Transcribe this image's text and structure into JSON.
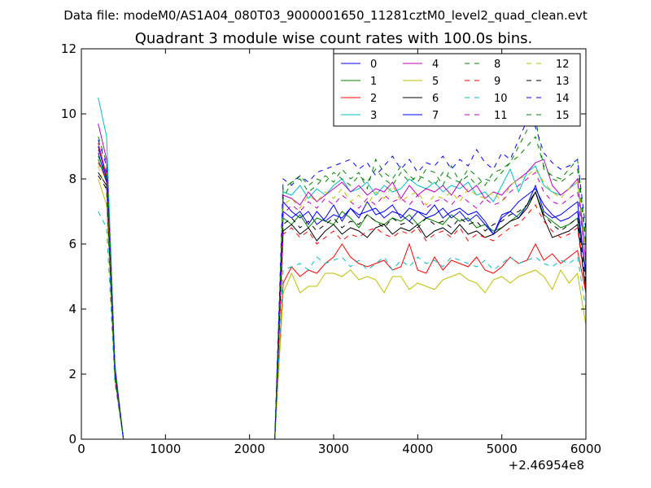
{
  "figure": {
    "suptitle": "Data file: modeM0/AS1A04_080T03_9000001650_11281cztM0_level2_quad_clean.evt"
  },
  "chart_data": {
    "type": "line",
    "title": "Quadrant 3 module wise count rates with 100.0s bins.",
    "xlabel": "",
    "ylabel": "",
    "xlim": [
      0,
      6000
    ],
    "ylim": [
      0,
      12
    ],
    "x_offset_label": "+2.46954e8",
    "x_ticks": [
      0,
      1000,
      2000,
      3000,
      4000,
      5000,
      6000
    ],
    "y_ticks": [
      0,
      2,
      4,
      6,
      8,
      10,
      12
    ],
    "grid": false,
    "legend_position": "top-right",
    "x": [
      200,
      300,
      400,
      500,
      600,
      700,
      800,
      900,
      1000,
      1100,
      1200,
      1300,
      1400,
      1500,
      1600,
      1700,
      1800,
      1900,
      2000,
      2100,
      2200,
      2300,
      2400,
      2500,
      2600,
      2700,
      2800,
      2900,
      3000,
      3100,
      3200,
      3300,
      3400,
      3500,
      3600,
      3700,
      3800,
      3900,
      4000,
      4100,
      4200,
      4300,
      4400,
      4500,
      4600,
      4700,
      4800,
      4900,
      5000,
      5100,
      5200,
      5300,
      5400,
      5500,
      5600,
      5700,
      5800,
      5900,
      6000
    ],
    "series": [
      {
        "name": "0",
        "color": "#0000ff",
        "dash": "solid",
        "values": [
          9.0,
          8.0,
          2.0,
          0,
          0,
          0,
          0,
          0,
          0,
          0,
          0,
          0,
          0,
          0,
          0,
          0,
          0,
          0,
          0,
          0,
          0,
          0,
          7.3,
          7.0,
          6.8,
          7.0,
          6.6,
          6.8,
          7.2,
          6.7,
          7.1,
          6.8,
          7.3,
          6.9,
          7.0,
          7.2,
          6.8,
          7.1,
          7.0,
          6.9,
          7.2,
          6.8,
          7.0,
          7.1,
          6.9,
          7.0,
          6.7,
          6.3,
          6.9,
          7.0,
          6.8,
          7.2,
          7.8,
          7.0,
          6.8,
          6.9,
          7.1,
          7.3,
          5.0
        ]
      },
      {
        "name": "1",
        "color": "#008000",
        "dash": "solid",
        "values": [
          8.6,
          7.9,
          2.1,
          0,
          0,
          0,
          0,
          0,
          0,
          0,
          0,
          0,
          0,
          0,
          0,
          0,
          0,
          0,
          0,
          0,
          0,
          0,
          6.8,
          6.6,
          6.9,
          6.5,
          6.8,
          6.7,
          6.6,
          7.0,
          6.8,
          6.5,
          6.9,
          6.7,
          6.6,
          6.8,
          6.7,
          6.9,
          6.6,
          6.8,
          6.7,
          6.6,
          6.9,
          6.7,
          6.8,
          6.5,
          6.6,
          6.4,
          6.5,
          6.7,
          6.9,
          7.2,
          7.6,
          6.9,
          6.7,
          6.5,
          6.6,
          6.8,
          5.2
        ]
      },
      {
        "name": "2",
        "color": "#ff0000",
        "dash": "solid",
        "values": [
          9.1,
          8.1,
          2.0,
          0,
          0,
          0,
          0,
          0,
          0,
          0,
          0,
          0,
          0,
          0,
          0,
          0,
          0,
          0,
          0,
          0,
          0,
          0,
          4.8,
          5.3,
          5.0,
          5.2,
          5.1,
          5.4,
          5.6,
          6.0,
          5.6,
          5.4,
          5.3,
          5.4,
          5.5,
          5.2,
          5.3,
          6.0,
          5.2,
          5.1,
          5.6,
          5.2,
          5.5,
          5.4,
          5.3,
          5.6,
          5.2,
          5.1,
          5.3,
          5.6,
          5.4,
          5.5,
          6.0,
          5.5,
          5.7,
          5.4,
          5.6,
          5.8,
          4.5
        ]
      },
      {
        "name": "3",
        "color": "#00bfbf",
        "dash": "solid",
        "values": [
          10.5,
          9.3,
          2.3,
          0,
          0,
          0,
          0,
          0,
          0,
          0,
          0,
          0,
          0,
          0,
          0,
          0,
          0,
          0,
          0,
          0,
          0,
          0,
          7.6,
          7.5,
          7.8,
          7.4,
          7.7,
          7.5,
          7.8,
          8.0,
          7.6,
          7.7,
          7.9,
          7.5,
          7.8,
          7.6,
          7.7,
          8.0,
          7.8,
          7.7,
          7.9,
          7.6,
          7.8,
          7.7,
          7.9,
          7.5,
          7.6,
          7.3,
          7.8,
          8.3,
          7.6,
          8.2,
          8.4,
          7.8,
          7.6,
          7.5,
          7.7,
          7.9,
          5.9
        ]
      },
      {
        "name": "4",
        "color": "#bf00bf",
        "dash": "solid",
        "values": [
          9.7,
          8.6,
          2.2,
          0,
          0,
          0,
          0,
          0,
          0,
          0,
          0,
          0,
          0,
          0,
          0,
          0,
          0,
          0,
          0,
          0,
          0,
          0,
          7.5,
          7.4,
          7.2,
          7.6,
          7.3,
          7.5,
          7.7,
          7.9,
          7.6,
          7.8,
          7.5,
          7.7,
          7.6,
          7.9,
          7.4,
          7.8,
          7.5,
          7.7,
          7.6,
          7.8,
          7.5,
          7.9,
          7.6,
          7.8,
          7.4,
          7.6,
          7.5,
          7.8,
          8.0,
          8.2,
          8.5,
          8.6,
          7.8,
          7.5,
          7.7,
          8.0,
          5.4
        ]
      },
      {
        "name": "5",
        "color": "#bfbf00",
        "dash": "solid",
        "values": [
          8.0,
          7.2,
          1.8,
          0,
          0,
          0,
          0,
          0,
          0,
          0,
          0,
          0,
          0,
          0,
          0,
          0,
          0,
          0,
          0,
          0,
          0,
          0,
          4.5,
          5.1,
          4.5,
          4.7,
          4.7,
          5.1,
          5.1,
          5.0,
          5.2,
          4.9,
          5.0,
          4.9,
          4.5,
          5.0,
          5.0,
          4.6,
          4.8,
          4.7,
          4.6,
          4.9,
          5.0,
          5.1,
          4.9,
          4.8,
          4.5,
          4.9,
          5.0,
          4.8,
          5.0,
          5.1,
          5.2,
          5.0,
          4.6,
          5.2,
          4.8,
          5.1,
          3.5
        ]
      },
      {
        "name": "6",
        "color": "#000000",
        "dash": "solid",
        "values": [
          8.2,
          7.8,
          2.0,
          0,
          0,
          0,
          0,
          0,
          0,
          0,
          0,
          0,
          0,
          0,
          0,
          0,
          0,
          0,
          0,
          0,
          0,
          0,
          6.4,
          6.6,
          6.3,
          6.5,
          6.1,
          6.4,
          6.6,
          6.3,
          6.5,
          6.4,
          6.2,
          6.5,
          6.6,
          6.3,
          6.5,
          6.4,
          6.6,
          6.2,
          6.4,
          6.5,
          6.3,
          6.6,
          6.3,
          6.4,
          6.2,
          6.3,
          6.5,
          6.7,
          6.8,
          7.1,
          7.6,
          6.8,
          6.2,
          6.3,
          6.4,
          6.6,
          4.6
        ]
      },
      {
        "name": "7",
        "color": "#0000ff",
        "dash": "solid",
        "values": [
          8.8,
          7.9,
          2.0,
          0,
          0,
          0,
          0,
          0,
          0,
          0,
          0,
          0,
          0,
          0,
          0,
          0,
          0,
          0,
          0,
          0,
          0,
          0,
          7.0,
          6.8,
          7.0,
          6.6,
          7.0,
          6.7,
          6.9,
          6.8,
          7.1,
          6.9,
          7.0,
          7.1,
          6.8,
          7.0,
          6.9,
          6.7,
          7.0,
          6.8,
          6.9,
          7.1,
          6.8,
          7.0,
          6.7,
          6.9,
          6.6,
          6.3,
          6.8,
          7.0,
          7.3,
          7.5,
          7.7,
          7.2,
          6.9,
          6.7,
          6.8,
          7.0,
          5.1
        ]
      },
      {
        "name": "8",
        "color": "#008000",
        "dash": "dashed",
        "values": [
          9.3,
          8.5,
          2.1,
          0,
          0,
          0,
          0,
          0,
          0,
          0,
          0,
          0,
          0,
          0,
          0,
          0,
          0,
          0,
          0,
          0,
          0,
          0,
          7.4,
          7.9,
          8.0,
          7.6,
          7.8,
          8.1,
          7.9,
          8.3,
          8.0,
          8.2,
          7.7,
          8.6,
          8.2,
          8.0,
          8.4,
          8.1,
          7.9,
          8.3,
          8.2,
          7.8,
          8.4,
          7.9,
          8.3,
          8.1,
          7.8,
          8.2,
          8.3,
          8.5,
          9.0,
          9.5,
          9.9,
          8.3,
          8.1,
          8.0,
          8.3,
          8.6,
          6.1
        ]
      },
      {
        "name": "9",
        "color": "#ff0000",
        "dash": "dashed",
        "values": [
          8.5,
          8.0,
          1.9,
          0,
          0,
          0,
          0,
          0,
          0,
          0,
          0,
          0,
          0,
          0,
          0,
          0,
          0,
          0,
          0,
          0,
          0,
          0,
          6.3,
          6.5,
          6.2,
          6.4,
          6.0,
          6.2,
          6.4,
          6.1,
          6.3,
          6.2,
          6.4,
          6.5,
          6.3,
          6.2,
          6.4,
          6.3,
          6.5,
          6.1,
          6.3,
          6.4,
          6.2,
          6.5,
          6.1,
          6.3,
          6.2,
          6.1,
          6.3,
          6.5,
          6.6,
          6.9,
          7.2,
          6.7,
          6.4,
          6.2,
          6.3,
          6.5,
          4.5
        ]
      },
      {
        "name": "10",
        "color": "#00bfbf",
        "dash": "dashed",
        "values": [
          7.0,
          6.5,
          1.7,
          0,
          0,
          0,
          0,
          0,
          0,
          0,
          0,
          0,
          0,
          0,
          0,
          0,
          0,
          0,
          0,
          0,
          0,
          0,
          5.2,
          5.3,
          5.4,
          5.2,
          5.6,
          5.4,
          5.5,
          5.6,
          5.3,
          5.5,
          5.2,
          5.4,
          5.6,
          5.2,
          5.5,
          5.3,
          5.6,
          5.4,
          5.5,
          5.3,
          5.6,
          5.5,
          5.4,
          5.3,
          5.5,
          5.2,
          5.4,
          5.6,
          5.4,
          5.5,
          5.6,
          5.4,
          5.3,
          5.5,
          5.4,
          5.6,
          4.0
        ]
      },
      {
        "name": "11",
        "color": "#bf00bf",
        "dash": "dashed",
        "values": [
          8.9,
          8.2,
          2.0,
          0,
          0,
          0,
          0,
          0,
          0,
          0,
          0,
          0,
          0,
          0,
          0,
          0,
          0,
          0,
          0,
          0,
          0,
          0,
          6.9,
          7.2,
          7.0,
          7.3,
          7.1,
          7.4,
          7.2,
          7.5,
          7.3,
          7.1,
          7.4,
          7.2,
          7.5,
          7.3,
          7.4,
          7.2,
          7.5,
          7.1,
          7.3,
          7.4,
          7.2,
          7.5,
          7.3,
          7.1,
          7.4,
          7.2,
          7.3,
          7.6,
          7.8,
          8.0,
          8.2,
          7.6,
          7.3,
          7.2,
          7.4,
          7.6,
          5.5
        ]
      },
      {
        "name": "12",
        "color": "#bfbf00",
        "dash": "dashed",
        "values": [
          8.4,
          7.6,
          1.9,
          0,
          0,
          0,
          0,
          0,
          0,
          0,
          0,
          0,
          0,
          0,
          0,
          0,
          0,
          0,
          0,
          0,
          0,
          0,
          7.2,
          7.4,
          7.1,
          7.5,
          7.3,
          7.6,
          7.4,
          7.7,
          7.3,
          7.5,
          7.2,
          7.6,
          7.4,
          7.8,
          7.3,
          7.5,
          7.6,
          7.2,
          7.5,
          7.4,
          7.6,
          7.3,
          7.7,
          7.5,
          7.4,
          7.6,
          7.3,
          7.8,
          8.0,
          8.1,
          8.3,
          7.9,
          7.6,
          7.4,
          7.7,
          7.9,
          5.8
        ]
      },
      {
        "name": "13",
        "color": "#000000",
        "dash": "dashed",
        "values": [
          8.1,
          7.7,
          1.9,
          0,
          0,
          0,
          0,
          0,
          0,
          0,
          0,
          0,
          0,
          0,
          0,
          0,
          0,
          0,
          0,
          0,
          0,
          0,
          6.6,
          6.8,
          6.5,
          6.7,
          6.4,
          6.6,
          6.8,
          6.5,
          6.7,
          6.6,
          6.9,
          6.7,
          6.5,
          6.8,
          6.6,
          6.7,
          6.5,
          6.8,
          6.6,
          6.7,
          6.5,
          6.8,
          6.6,
          6.7,
          6.4,
          6.6,
          6.7,
          6.9,
          7.0,
          7.2,
          7.6,
          6.9,
          6.6,
          6.4,
          6.6,
          6.8,
          4.8
        ]
      },
      {
        "name": "14",
        "color": "#0000ff",
        "dash": "dashed",
        "values": [
          9.2,
          8.4,
          2.1,
          0,
          0,
          0,
          0,
          0,
          0,
          0,
          0,
          0,
          0,
          0,
          0,
          0,
          0,
          0,
          0,
          0,
          0,
          0,
          8.0,
          7.8,
          8.1,
          7.9,
          8.2,
          8.3,
          8.4,
          8.5,
          8.6,
          8.3,
          8.5,
          8.1,
          8.4,
          8.7,
          8.3,
          8.6,
          8.2,
          8.5,
          8.4,
          8.7,
          8.3,
          8.6,
          8.4,
          8.9,
          8.5,
          8.3,
          8.8,
          8.6,
          9.2,
          9.8,
          9.6,
          8.8,
          8.5,
          8.3,
          8.4,
          8.6,
          6.4
        ]
      },
      {
        "name": "15",
        "color": "#008000",
        "dash": "dashed",
        "values": [
          8.7,
          8.1,
          2.0,
          0,
          0,
          0,
          0,
          0,
          0,
          0,
          0,
          0,
          0,
          0,
          0,
          0,
          0,
          0,
          0,
          0,
          0,
          0,
          7.7,
          7.9,
          8.1,
          7.8,
          8.0,
          7.9,
          8.2,
          8.0,
          7.8,
          8.1,
          7.9,
          8.3,
          8.0,
          7.8,
          8.2,
          7.9,
          8.1,
          8.0,
          7.8,
          8.2,
          8.0,
          7.9,
          8.1,
          7.8,
          8.0,
          7.9,
          8.2,
          8.5,
          8.7,
          9.0,
          9.3,
          8.4,
          8.0,
          7.9,
          8.1,
          8.3,
          6.0
        ]
      }
    ]
  }
}
